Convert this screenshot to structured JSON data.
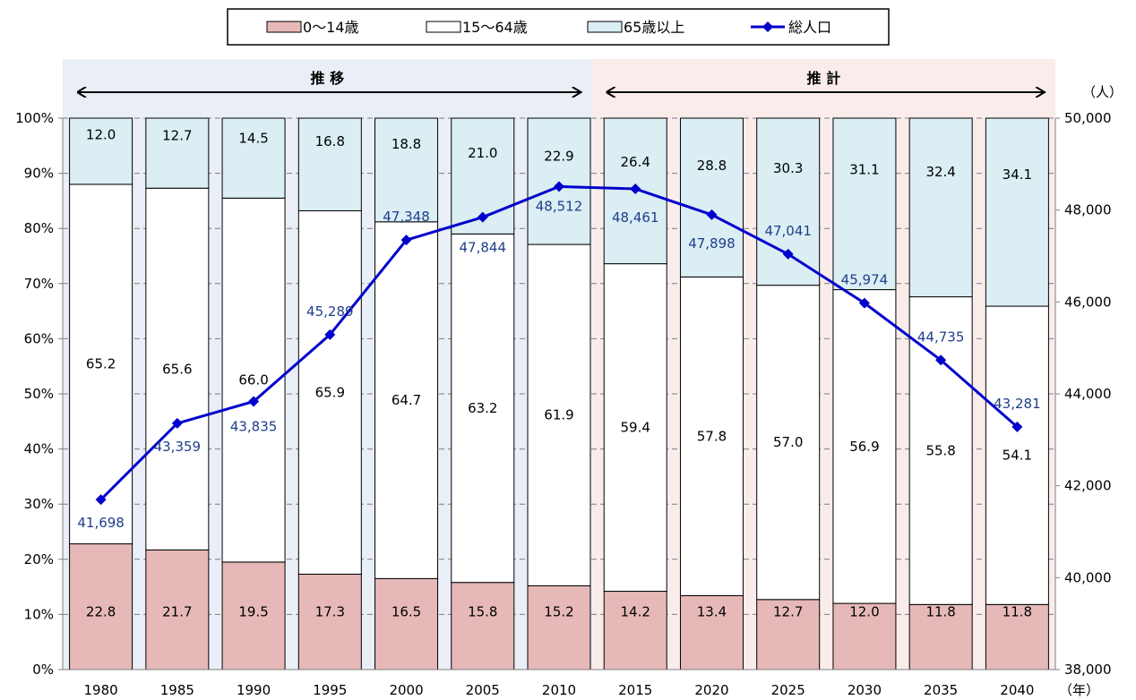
{
  "chart_data": {
    "type": "bar",
    "stacked": true,
    "categories": [
      "1980",
      "1985",
      "1990",
      "1995",
      "2000",
      "2005",
      "2010",
      "2015",
      "2020",
      "2025",
      "2030",
      "2035",
      "2040"
    ],
    "series": [
      {
        "name": "0～14歳",
        "color": "#e6b9b8",
        "values": [
          22.8,
          21.7,
          19.5,
          17.3,
          16.5,
          15.8,
          15.2,
          14.2,
          13.4,
          12.7,
          12.0,
          11.8,
          11.8
        ]
      },
      {
        "name": "15～64歳",
        "color": "#ffffff",
        "values": [
          65.2,
          65.6,
          66.0,
          65.9,
          64.7,
          63.2,
          61.9,
          59.4,
          57.8,
          57.0,
          56.9,
          55.8,
          54.1
        ]
      },
      {
        "name": "65歳以上",
        "color": "#daeef3",
        "values": [
          12.0,
          12.7,
          14.5,
          16.8,
          18.8,
          21.0,
          22.9,
          26.4,
          28.8,
          30.3,
          31.1,
          32.4,
          34.1
        ]
      }
    ],
    "line_series": {
      "name": "総人口",
      "color": "#0000cc",
      "values": [
        41698,
        43359,
        43835,
        45289,
        47348,
        47844,
        48512,
        48461,
        47898,
        47041,
        45974,
        44735,
        43281
      ],
      "labels": [
        "41,698",
        "43,359",
        "43,835",
        "45,289",
        "47,348",
        "47,844",
        "48,512",
        "48,461",
        "47,898",
        "47,041",
        "45,974",
        "44,735",
        "43,281"
      ]
    },
    "segment_labels": {
      "0～14歳": [
        "22.8",
        "21.7",
        "19.5",
        "17.3",
        "16.5",
        "15.8",
        "15.2",
        "14.2",
        "13.4",
        "12.7",
        "12.0",
        "11.8",
        "11.8"
      ],
      "15～64歳": [
        "65.2",
        "65.6",
        "66.0",
        "65.9",
        "64.7",
        "63.2",
        "61.9",
        "59.4",
        "57.8",
        "57.0",
        "56.9",
        "55.8",
        "54.1"
      ],
      "65歳以上": [
        "12.0",
        "12.7",
        "14.5",
        "16.8",
        "18.8",
        "21.0",
        "22.9",
        "26.4",
        "28.8",
        "30.3",
        "31.1",
        "32.4",
        "34.1"
      ]
    },
    "y_left": {
      "min": 0,
      "max": 100,
      "ticks": [
        "0%",
        "10%",
        "20%",
        "30%",
        "40%",
        "50%",
        "60%",
        "70%",
        "80%",
        "90%",
        "100%"
      ]
    },
    "y_right": {
      "min": 38000,
      "max": 50000,
      "ticks": [
        "38,000",
        "40,000",
        "42,000",
        "44,000",
        "46,000",
        "48,000",
        "50,000"
      ],
      "unit": "（人）"
    },
    "x_unit": "（年）",
    "periods": [
      {
        "label": "推 移",
        "from": "1980",
        "to": "2010",
        "color": "#e9eef7"
      },
      {
        "label": "推 計",
        "from": "2015",
        "to": "2040",
        "color": "#f9eceb"
      }
    ],
    "legend": {
      "position": "top",
      "items": [
        {
          "label": "0～14歳",
          "kind": "box",
          "color": "#e6b9b8"
        },
        {
          "label": "15～64歳",
          "kind": "box",
          "color": "#ffffff"
        },
        {
          "label": "65歳以上",
          "kind": "box",
          "color": "#daeef3"
        },
        {
          "label": "総人口",
          "kind": "line",
          "color": "#0000cc"
        }
      ]
    },
    "gridlines": true
  }
}
